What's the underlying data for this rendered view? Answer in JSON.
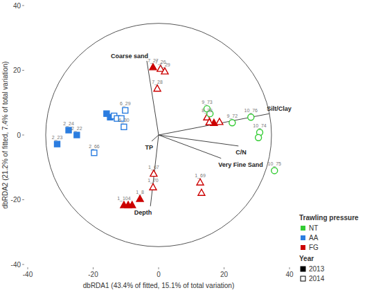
{
  "chart_data": {
    "type": "scatter",
    "x_label": "dbRDA1 (43.4% of fitted, 15.1% of total variation)",
    "y_label": "dbRDA2 (21.2% of fitted, 7.4% of total variation)",
    "xlim": [
      -40,
      40
    ],
    "ylim": [
      -40,
      40
    ],
    "xticks": [
      -40,
      -20,
      0,
      20,
      40
    ],
    "yticks": [
      -40,
      -20,
      0,
      20,
      40
    ],
    "grid": false,
    "legend": "right",
    "legend_sections": [
      {
        "title": "Trawling pressure",
        "items": [
          "NT",
          "AA",
          "FG"
        ],
        "colors": [
          "#33cc33",
          "#2b7de0",
          "#cc0000"
        ]
      },
      {
        "title": "Year",
        "items": [
          "2013",
          "2014"
        ]
      }
    ],
    "circle_radius": 34.5,
    "vectors": [
      {
        "name": "Coarse sand",
        "x": -3.6,
        "y": 22.9
      },
      {
        "name": "Silt/Clay",
        "x": 33.9,
        "y": 6.6
      },
      {
        "name": "C/N",
        "x": 24.4,
        "y": -3.4
      },
      {
        "name": "Very Fine Sand",
        "x": 19.1,
        "y": -7.2
      },
      {
        "name": "TP",
        "x": -2.1,
        "y": -1.9
      },
      {
        "name": "Depth",
        "x": -2.5,
        "y": -22
      }
    ],
    "series": [
      {
        "name": "AA",
        "year": "2013",
        "color": "#2b7de0",
        "marker": "square",
        "x": [
          -27.5,
          -25,
          -31,
          -14.8,
          -15.9
        ],
        "values": [
          1.5,
          0,
          -2.8,
          5.5,
          6.6
        ],
        "labels": [
          "2_24",
          "2_22",
          "2_23",
          null,
          null
        ]
      },
      {
        "name": "AA",
        "year": "2014",
        "color": "#2b7de0",
        "marker": "square",
        "x": [
          -13.6,
          -12.7,
          -11.4,
          -10.2,
          -10.6,
          -19.7
        ],
        "values": [
          5.9,
          5.1,
          5.1,
          7.6,
          2.5,
          -5.5
        ],
        "labels": [
          null,
          null,
          null,
          "6_29",
          "6_30",
          "2_66"
        ]
      },
      {
        "name": "FG",
        "year": "2013",
        "color": "#cc0000",
        "marker": "triangle",
        "x": [
          -1.7,
          16.9,
          -5.7,
          -10.6,
          -9.3,
          -8.1
        ],
        "values": [
          21,
          3.8,
          -19.7,
          -21.6,
          -21.6,
          -21.6
        ],
        "labels": [
          "7_27",
          null,
          "1_8",
          "1_104",
          null,
          null
        ]
      },
      {
        "name": "FG",
        "year": "2014",
        "color": "#cc0000",
        "marker": "triangle",
        "x": [
          0.6,
          1.9,
          -0.4,
          14.8,
          15.5,
          18.6,
          -1.5,
          -1.7,
          12.7,
          13.1
        ],
        "values": [
          20.5,
          19.7,
          14.4,
          5.5,
          4,
          4.1,
          -11.9,
          -16.1,
          -14.6,
          -17.8
        ],
        "labels": [
          "7_26",
          "7_29",
          "7_28",
          "8_33",
          null,
          null,
          "1_67",
          "1_70",
          "1_69",
          null
        ]
      },
      {
        "name": "NT",
        "year": "2014",
        "color": "#33cc33",
        "marker": "circle",
        "x": [
          14.8,
          15.7,
          22.5,
          28.2,
          30.9,
          30.5,
          35.4
        ],
        "values": [
          8.1,
          6.6,
          3.8,
          5.5,
          0.8,
          -0.8,
          -11
        ],
        "labels": [
          "9_73",
          null,
          "9_72",
          "10_76",
          "10_74",
          null,
          "10_75"
        ]
      }
    ]
  }
}
